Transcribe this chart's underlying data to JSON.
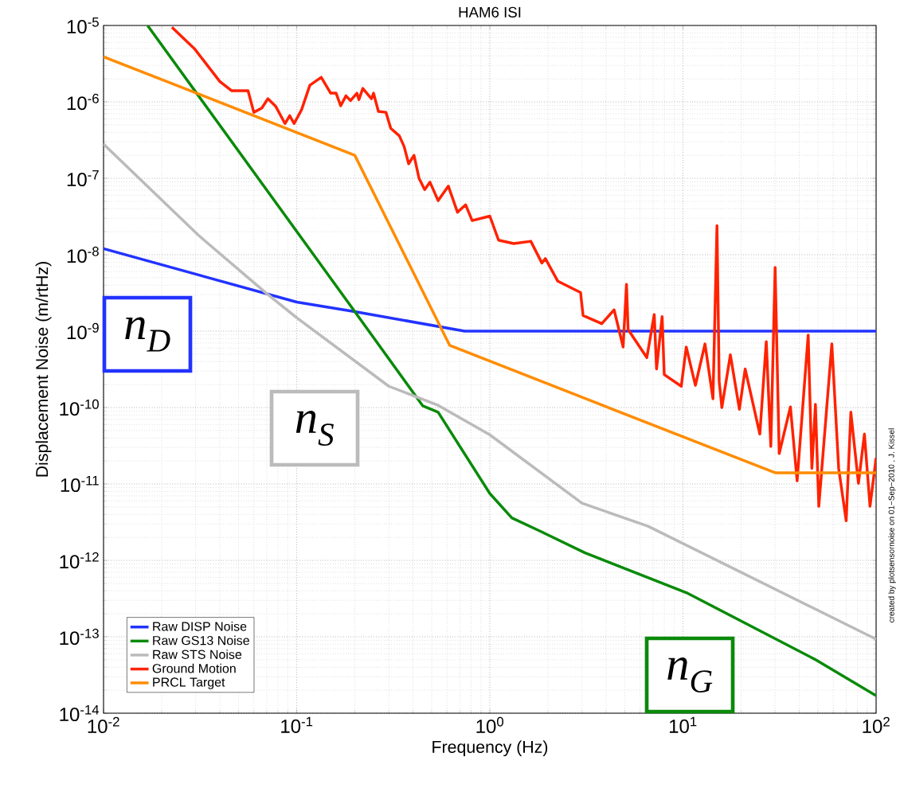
{
  "chart_data": {
    "type": "line",
    "title": "HAM6 ISI",
    "xlabel": "Frequency (Hz)",
    "ylabel": "Displacement Noise (m/rtHz)",
    "log": "xy",
    "grid": true,
    "legend": "bottom left",
    "marker": "none",
    "line_style": "solid",
    "xlim": [
      0.01,
      100
    ],
    "ylim": [
      1e-14,
      1e-05
    ],
    "xticks": [
      {
        "value": 0.01,
        "label": "10$^{-2}$"
      },
      {
        "value": 0.1,
        "label": "10$^{-1}$"
      },
      {
        "value": 1,
        "label": "10$^{0}$"
      },
      {
        "value": 10,
        "label": "10$^{1}$"
      },
      {
        "value": 100,
        "label": "10$^{2}$"
      }
    ],
    "yticks": [
      {
        "value": 1e-14,
        "label": "10$^{-14}$"
      },
      {
        "value": 1e-13,
        "label": "10$^{-13}$"
      },
      {
        "value": 1e-12,
        "label": "10$^{-12}$"
      },
      {
        "value": 1e-11,
        "label": "10$^{-11}$"
      },
      {
        "value": 1e-10,
        "label": "10$^{-10}$"
      },
      {
        "value": 1e-09,
        "label": "10$^{-9}$"
      },
      {
        "value": 1e-08,
        "label": "10$^{-8}$"
      },
      {
        "value": 1e-07,
        "label": "10$^{-7}$"
      },
      {
        "value": 1e-06,
        "label": "10$^{-6}$"
      },
      {
        "value": 1e-05,
        "label": "10$^{-5}$"
      }
    ],
    "series": [
      {
        "name": "Raw DISP Noise",
        "color": "#2233ff",
        "x": [
          0.01,
          0.1,
          0.2,
          0.74,
          100
        ],
        "values": [
          1.2e-08,
          2.4e-09,
          1.8e-09,
          1e-09,
          1e-09
        ]
      },
      {
        "name": "Raw GS13 Noise",
        "color": "#0a8a0a",
        "x": [
          0.0169,
          0.2,
          0.45,
          0.54,
          1.0,
          1.3,
          1.83,
          3.1,
          10.6,
          48,
          100
        ],
        "values": [
          1e-05,
          1.8e-09,
          1.05e-10,
          8.7e-11,
          7.5e-12,
          3.6e-12,
          2.4e-12,
          1.26e-12,
          3.7e-13,
          5.1e-14,
          1.7e-14
        ]
      },
      {
        "name": "Raw STS Noise",
        "color": "#bbbbbb",
        "x": [
          0.01,
          0.031,
          0.07,
          0.1,
          0.3,
          0.54,
          1.0,
          3.0,
          6.6,
          100
        ],
        "values": [
          2.8e-07,
          1.8e-08,
          3.1e-09,
          1.5e-09,
          1.9e-10,
          1.07e-10,
          4.4e-11,
          5.6e-12,
          2.8e-12,
          9.3e-14
        ]
      },
      {
        "name": "Ground Motion",
        "color": "#ff2200",
        "x": [
          0.0226,
          0.0295,
          0.04,
          0.046,
          0.056,
          0.06,
          0.066,
          0.071,
          0.078,
          0.087,
          0.092,
          0.097,
          0.106,
          0.117,
          0.134,
          0.15,
          0.16,
          0.169,
          0.18,
          0.19,
          0.205,
          0.21,
          0.22,
          0.244,
          0.25,
          0.265,
          0.29,
          0.307,
          0.34,
          0.36,
          0.38,
          0.405,
          0.43,
          0.46,
          0.49,
          0.54,
          0.61,
          0.68,
          0.75,
          0.81,
          1.0,
          1.11,
          1.33,
          1.63,
          1.86,
          1.94,
          2.25,
          2.95,
          3.04,
          3.8,
          4.4,
          4.9,
          5.1,
          5.2,
          6.5,
          7.1,
          7.3,
          7.8,
          8.0,
          9.8,
          10.4,
          11.6,
          13.0,
          14.3,
          15.0,
          15.4,
          15.9,
          17.6,
          19.6,
          21,
          25,
          27,
          28.5,
          30,
          31.5,
          36,
          39,
          44.5,
          46.5,
          48.5,
          50.5,
          59,
          64,
          70,
          74,
          81,
          87,
          93,
          100
        ],
        "values": [
          9.5e-06,
          5e-06,
          1.85e-06,
          1.4e-06,
          1.4e-06,
          7.3e-07,
          8.3e-07,
          1.1e-06,
          8.7e-07,
          5.2e-07,
          6.6e-07,
          5.2e-07,
          7.9e-07,
          1.65e-06,
          2.1e-06,
          1.3e-06,
          1.3e-06,
          8.9e-07,
          1.2e-06,
          1.04e-06,
          1.3e-06,
          1.07e-06,
          1.5e-06,
          1.1e-06,
          1.3e-06,
          7.5e-07,
          7.3e-07,
          4.5e-07,
          3.6e-07,
          2.6e-07,
          1.55e-07,
          2e-07,
          1e-07,
          7.1e-08,
          8.9e-08,
          5.1e-08,
          7.9e-08,
          3.6e-08,
          4.5e-08,
          2.8e-08,
          3.2e-08,
          1.55e-08,
          1.4e-08,
          1.5e-08,
          7.8e-09,
          8.9e-09,
          4.5e-09,
          3.2e-09,
          1.6e-09,
          1.25e-09,
          1.9e-09,
          6.2e-10,
          4.1e-09,
          1.05e-09,
          4.5e-10,
          1.65e-09,
          3.2e-10,
          1.55e-09,
          2.7e-10,
          1.9e-10,
          6.2e-10,
          1.95e-10,
          6.8e-10,
          1.3e-10,
          2.4e-08,
          2.2e-10,
          1e-10,
          4.9e-10,
          9.5e-11,
          3.2e-10,
          4.5e-11,
          7.3e-10,
          3.1e-11,
          6.8e-09,
          2.5e-11,
          1.02e-10,
          1.1e-11,
          8.9e-10,
          1.6e-11,
          1.1e-10,
          5.1e-12,
          6.8e-10,
          1.6e-11,
          3.3e-12,
          8.7e-11,
          1.02e-11,
          4.5e-11,
          5.1e-12,
          2.2e-11
        ]
      },
      {
        "name": "PRCL Target",
        "color": "#ff8c00",
        "x": [
          0.01,
          0.2,
          0.62,
          30,
          100
        ],
        "values": [
          3.9e-06,
          2e-07,
          6.5e-10,
          1.4e-11,
          1.4e-11
        ]
      }
    ],
    "annotations": [
      "n$_{D}$",
      "n$_{S}$",
      "n$_{G}$",
      "created by plotsensornoise on 01−Sep−2010 , J. Kissel"
    ]
  }
}
